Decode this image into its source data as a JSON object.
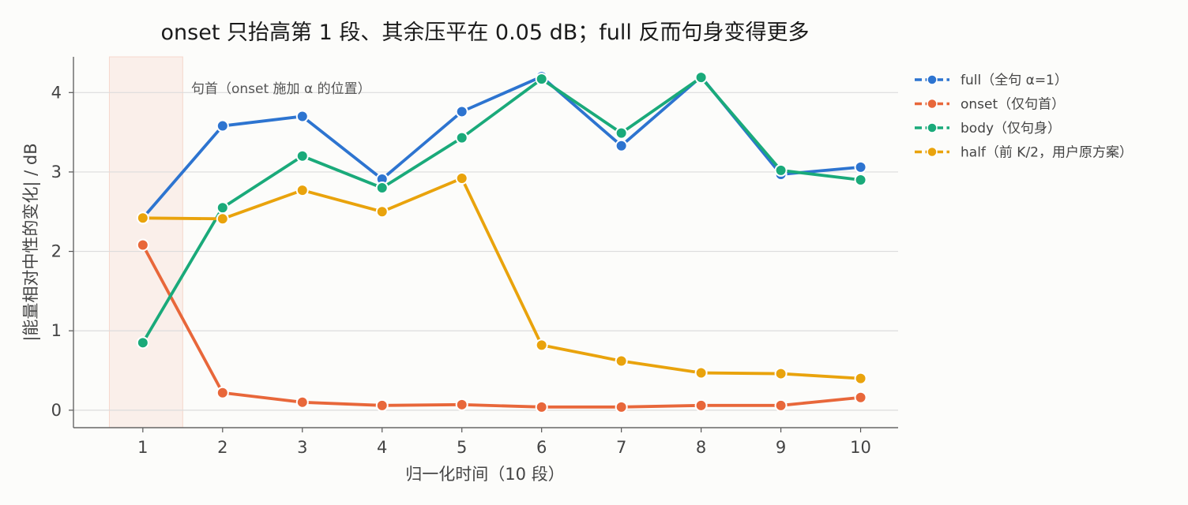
{
  "chart_data": {
    "type": "line",
    "title": "onset 只抬高第 1 段、其余压平在 0.05 dB；full 反而句身变得更多",
    "xlabel": "归一化时间（10 段）",
    "ylabel": "|能量相对中性的变化| / dB",
    "x": [
      1,
      2,
      3,
      4,
      5,
      6,
      7,
      8,
      9,
      10
    ],
    "x_ticks": [
      "1",
      "2",
      "3",
      "4",
      "5",
      "6",
      "7",
      "8",
      "9",
      "10"
    ],
    "y_ticks": [
      "0",
      "1",
      "2",
      "3",
      "4"
    ],
    "xlim": [
      0.13,
      10.47
    ],
    "ylim": [
      -0.22,
      4.45
    ],
    "grid": "horizontal",
    "legend_position": "right-outside-top",
    "shaded_region": {
      "x_from": 0.58,
      "x_to": 1.5,
      "color": "#f6d7cc"
    },
    "annotation": "句首（onset 施加 α 的位置）",
    "series": [
      {
        "name": "full（全句 α=1）",
        "color": "#2d74d0",
        "values": [
          2.42,
          3.58,
          3.7,
          2.91,
          3.76,
          4.2,
          3.33,
          4.2,
          2.97,
          3.06
        ]
      },
      {
        "name": "onset（仅句首）",
        "color": "#e8673a",
        "values": [
          2.08,
          0.22,
          0.1,
          0.06,
          0.07,
          0.04,
          0.04,
          0.06,
          0.06,
          0.16
        ]
      },
      {
        "name": "body（仅句身）",
        "color": "#1aaa7a",
        "values": [
          0.85,
          2.55,
          3.2,
          2.8,
          3.43,
          4.17,
          3.49,
          4.19,
          3.02,
          2.9
        ]
      },
      {
        "name": "half（前 K/2，用户原方案）",
        "color": "#e9a30c",
        "values": [
          2.42,
          2.41,
          2.77,
          2.5,
          2.92,
          0.82,
          0.62,
          0.47,
          0.46,
          0.4
        ]
      }
    ]
  }
}
